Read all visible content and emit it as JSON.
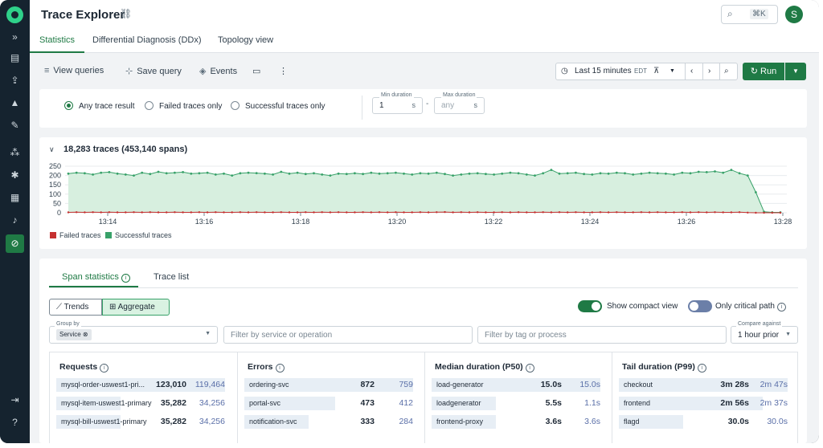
{
  "app": {
    "title": "Trace Explorer",
    "avatar_initial": "S",
    "search_shortcut": "⌘K"
  },
  "sidebar": {
    "icons": [
      "chevrons-right-icon",
      "book-icon",
      "deploy-icon",
      "layers-icon",
      "wrench-icon",
      "services-icon",
      "network-icon",
      "dashboard-icon",
      "bell-icon",
      "compass-icon",
      "logout-icon",
      "help-icon"
    ]
  },
  "tabs": [
    "Statistics",
    "Differential Diagnosis (DDx)",
    "Topology view"
  ],
  "toolbar": {
    "view_queries": "View queries",
    "save_query": "Save query",
    "events": "Events",
    "time_range": "Last 15 minutes",
    "timezone": "EDT",
    "run": "Run"
  },
  "filters": {
    "result_options": [
      "Any trace result",
      "Failed traces only",
      "Successful traces only"
    ],
    "selected_result": "Any trace result",
    "min_duration": {
      "label": "Min duration",
      "value": "1",
      "unit": "s"
    },
    "max_duration": {
      "label": "Max duration",
      "placeholder": "any",
      "unit": "s"
    },
    "range_sep": "-"
  },
  "chart_header": "18,283 traces (453,140 spans)",
  "chart_data": {
    "type": "area",
    "x_ticks": [
      "13:14",
      "13:16",
      "13:18",
      "13:20",
      "13:22",
      "13:24",
      "13:26",
      "13:28"
    ],
    "y_ticks": [
      0,
      50,
      100,
      150,
      200,
      250
    ],
    "ylim": [
      0,
      250
    ],
    "series": [
      {
        "name": "Failed traces",
        "color": "#c53030",
        "values": [
          2,
          3,
          2,
          3,
          2,
          3,
          2,
          2,
          3,
          2,
          3,
          2,
          2,
          3,
          2,
          2,
          3,
          2,
          3,
          2,
          2,
          3,
          2,
          3,
          2,
          2,
          3,
          2,
          2,
          3,
          2,
          3,
          2,
          3,
          2,
          2,
          3,
          2,
          3,
          2,
          3,
          2,
          2,
          3,
          2,
          3,
          4,
          2,
          3,
          2,
          3,
          2,
          2,
          3,
          2,
          3,
          2,
          2,
          3,
          2,
          3,
          2,
          3,
          2,
          2,
          3,
          2,
          3,
          2,
          2,
          3,
          2,
          3,
          2,
          2,
          3,
          2,
          3,
          2,
          3,
          2,
          2,
          3,
          1,
          0,
          0,
          0,
          0
        ]
      },
      {
        "name": "Successful traces",
        "color": "#38a169",
        "values": [
          210,
          215,
          212,
          205,
          215,
          218,
          210,
          205,
          200,
          215,
          208,
          220,
          212,
          215,
          218,
          210,
          212,
          215,
          205,
          210,
          200,
          212,
          215,
          213,
          210,
          205,
          220,
          210,
          215,
          208,
          212,
          205,
          200,
          210,
          208,
          212,
          208,
          215,
          210,
          212,
          215,
          210,
          205,
          212,
          210,
          215,
          208,
          200,
          205,
          210,
          212,
          208,
          205,
          210,
          215,
          212,
          205,
          200,
          212,
          230,
          210,
          212,
          215,
          208,
          205,
          212,
          210,
          215,
          212,
          205,
          210,
          215,
          212,
          210,
          205,
          215,
          212,
          220,
          218,
          222,
          215,
          230,
          212,
          200,
          110,
          5,
          2,
          2
        ]
      }
    ]
  },
  "stats": {
    "tabs": [
      "Span statistics",
      "Trace list"
    ],
    "view_modes": [
      "Trends",
      "Aggregate"
    ],
    "selected_view": "Aggregate",
    "show_compact_view": {
      "label": "Show compact view",
      "on": true
    },
    "only_critical_path": {
      "label": "Only critical path",
      "on": false
    },
    "group_by": {
      "label": "Group by",
      "chip": "Service"
    },
    "filter_service_placeholder": "Filter by service or operation",
    "filter_tag_placeholder": "Filter by tag or process",
    "compare_against": {
      "label": "Compare against",
      "value": "1 hour prior"
    },
    "columns": [
      {
        "title": "Requests",
        "rows": [
          {
            "name": "mysql-order-uswest1-pri...",
            "v1": "123,010",
            "v2": "119,464",
            "fill": 1.0
          },
          {
            "name": "mysql-item-uswest1-primary",
            "v1": "35,282",
            "v2": "34,256",
            "fill": 0.29
          },
          {
            "name": "mysql-bill-uswest1-primary",
            "v1": "35,282",
            "v2": "34,256",
            "fill": 0.29
          }
        ]
      },
      {
        "title": "Errors",
        "rows": [
          {
            "name": "ordering-svc",
            "v1": "872",
            "v2": "759",
            "fill": 1.0
          },
          {
            "name": "portal-svc",
            "v1": "473",
            "v2": "412",
            "fill": 0.54
          },
          {
            "name": "notification-svc",
            "v1": "333",
            "v2": "284",
            "fill": 0.38
          }
        ]
      },
      {
        "title": "Median duration (P50)",
        "rows": [
          {
            "name": "load-generator",
            "v1": "15.0s",
            "v2": "15.0s",
            "fill": 1.0
          },
          {
            "name": "loadgenerator",
            "v1": "5.5s",
            "v2": "1.1s",
            "fill": 0.37
          },
          {
            "name": "frontend-proxy",
            "v1": "3.6s",
            "v2": "3.6s",
            "fill": 0.24
          }
        ]
      },
      {
        "title": "Tail duration (P99)",
        "rows": [
          {
            "name": "checkout",
            "v1": "3m 28s",
            "v2": "2m 47s",
            "fill": 1.0
          },
          {
            "name": "frontend",
            "v1": "2m 56s",
            "v2": "2m 37s",
            "fill": 0.85
          },
          {
            "name": "flagd",
            "v1": "30.0s",
            "v2": "30.0s",
            "fill": 0.14
          }
        ]
      }
    ]
  }
}
